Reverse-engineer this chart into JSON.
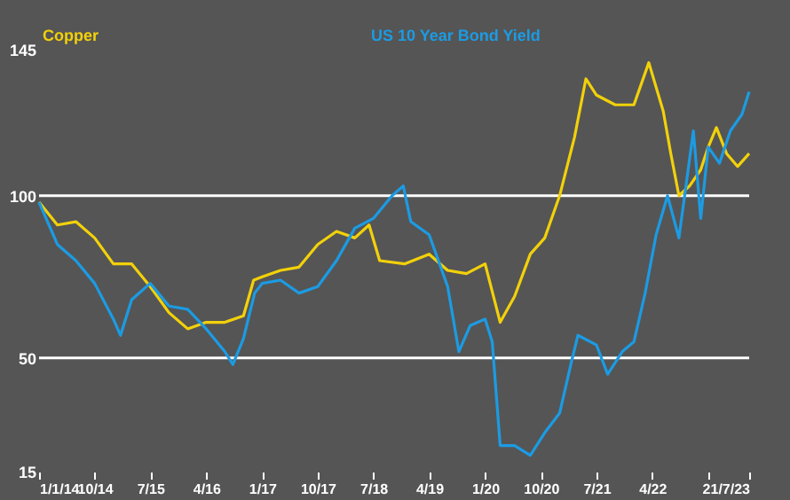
{
  "chart_data": {
    "type": "line",
    "legend": "top",
    "ylim": [
      15,
      145
    ],
    "yticks": [
      15,
      50,
      100,
      145
    ],
    "xlim": [
      "2014-01-01",
      "2023-07-21"
    ],
    "xticks": [
      {
        "value": "2014-01-01",
        "label": "1/1/14"
      },
      {
        "value": "2014-10-01",
        "label": "10/14"
      },
      {
        "value": "2015-07-01",
        "label": "7/15"
      },
      {
        "value": "2016-04-01",
        "label": "4/16"
      },
      {
        "value": "2017-01-01",
        "label": "1/17"
      },
      {
        "value": "2017-10-01",
        "label": "10/17"
      },
      {
        "value": "2018-07-01",
        "label": "7/18"
      },
      {
        "value": "2019-04-01",
        "label": "4/19"
      },
      {
        "value": "2020-01-01",
        "label": "1/20"
      },
      {
        "value": "2020-10-01",
        "label": "10/20"
      },
      {
        "value": "2021-07-01",
        "label": "7/21"
      },
      {
        "value": "2022-04-01",
        "label": "4/22"
      },
      {
        "value": "2023-01-01",
        "label": null
      },
      {
        "value": "2023-07-21",
        "label": "21/7/23"
      }
    ],
    "ref_lines": [
      {
        "axis": "y",
        "value": 100,
        "label": null,
        "color": "#ffffff"
      },
      {
        "axis": "y",
        "value": 50,
        "label": null,
        "color": "#ffffff"
      }
    ],
    "series": [
      {
        "name": "Copper",
        "color": "#f2d10a",
        "x": [
          "2014-01-01",
          "2014-04-01",
          "2014-07-01",
          "2014-10-01",
          "2015-01-01",
          "2015-04-01",
          "2015-07-01",
          "2015-10-01",
          "2016-01-01",
          "2016-04-01",
          "2016-07-01",
          "2016-10-01",
          "2016-11-20",
          "2017-01-01",
          "2017-04-01",
          "2017-07-01",
          "2017-10-01",
          "2018-01-01",
          "2018-04-01",
          "2018-06-10",
          "2018-08-01",
          "2018-12-01",
          "2019-04-01",
          "2019-07-01",
          "2019-10-01",
          "2020-01-01",
          "2020-03-15",
          "2020-05-25",
          "2020-08-10",
          "2020-10-20",
          "2021-01-01",
          "2021-03-15",
          "2021-05-10",
          "2021-07-01",
          "2021-10-01",
          "2022-01-01",
          "2022-03-15",
          "2022-05-25",
          "2022-07-01",
          "2022-08-10",
          "2022-10-01",
          "2022-11-25",
          "2023-01-01",
          "2023-02-10",
          "2023-04-01",
          "2023-05-25",
          "2023-07-21"
        ],
        "values": [
          98,
          91,
          92,
          87,
          79,
          79,
          72,
          64,
          59,
          61,
          61,
          63,
          74,
          75,
          77,
          78,
          85,
          89,
          87,
          91,
          80,
          79,
          82,
          77,
          76,
          79,
          61,
          69,
          82,
          87,
          100,
          118,
          136,
          131,
          128,
          128,
          141,
          126,
          113,
          100,
          103,
          108,
          115,
          121,
          113,
          109,
          113
        ]
      },
      {
        "name": "US 10 Year Bond Yield",
        "color": "#1c9be3",
        "x": [
          "2014-01-01",
          "2014-04-01",
          "2014-07-01",
          "2014-10-01",
          "2015-01-01",
          "2015-02-05",
          "2015-04-01",
          "2015-07-01",
          "2015-10-01",
          "2016-01-01",
          "2016-04-01",
          "2016-07-01",
          "2016-08-10",
          "2016-10-01",
          "2016-11-25",
          "2017-01-01",
          "2017-04-01",
          "2017-07-01",
          "2017-10-01",
          "2018-01-01",
          "2018-04-01",
          "2018-07-01",
          "2018-10-01",
          "2018-11-25",
          "2019-01-01",
          "2019-04-01",
          "2019-07-01",
          "2019-08-25",
          "2019-10-20",
          "2020-01-01",
          "2020-02-05",
          "2020-03-15",
          "2020-05-25",
          "2020-08-10",
          "2020-10-20",
          "2021-01-01",
          "2021-02-25",
          "2021-04-01",
          "2021-07-01",
          "2021-08-25",
          "2021-11-05",
          "2022-01-01",
          "2022-02-25",
          "2022-04-20",
          "2022-06-15",
          "2022-08-10",
          "2022-10-20",
          "2022-11-25",
          "2023-01-01",
          "2023-02-25",
          "2023-04-20",
          "2023-06-15",
          "2023-07-21"
        ],
        "values": [
          98,
          85,
          80,
          73,
          62,
          57,
          68,
          73,
          66,
          65,
          59,
          52,
          48,
          56,
          70,
          73,
          74,
          70,
          72,
          80,
          90,
          93,
          100,
          103,
          92,
          88,
          72,
          52,
          60,
          62,
          55,
          23,
          23,
          20,
          27,
          33,
          48,
          57,
          54,
          45,
          52,
          55,
          70,
          88,
          100,
          87,
          120,
          93,
          115,
          110,
          120,
          125,
          132
        ]
      }
    ]
  }
}
